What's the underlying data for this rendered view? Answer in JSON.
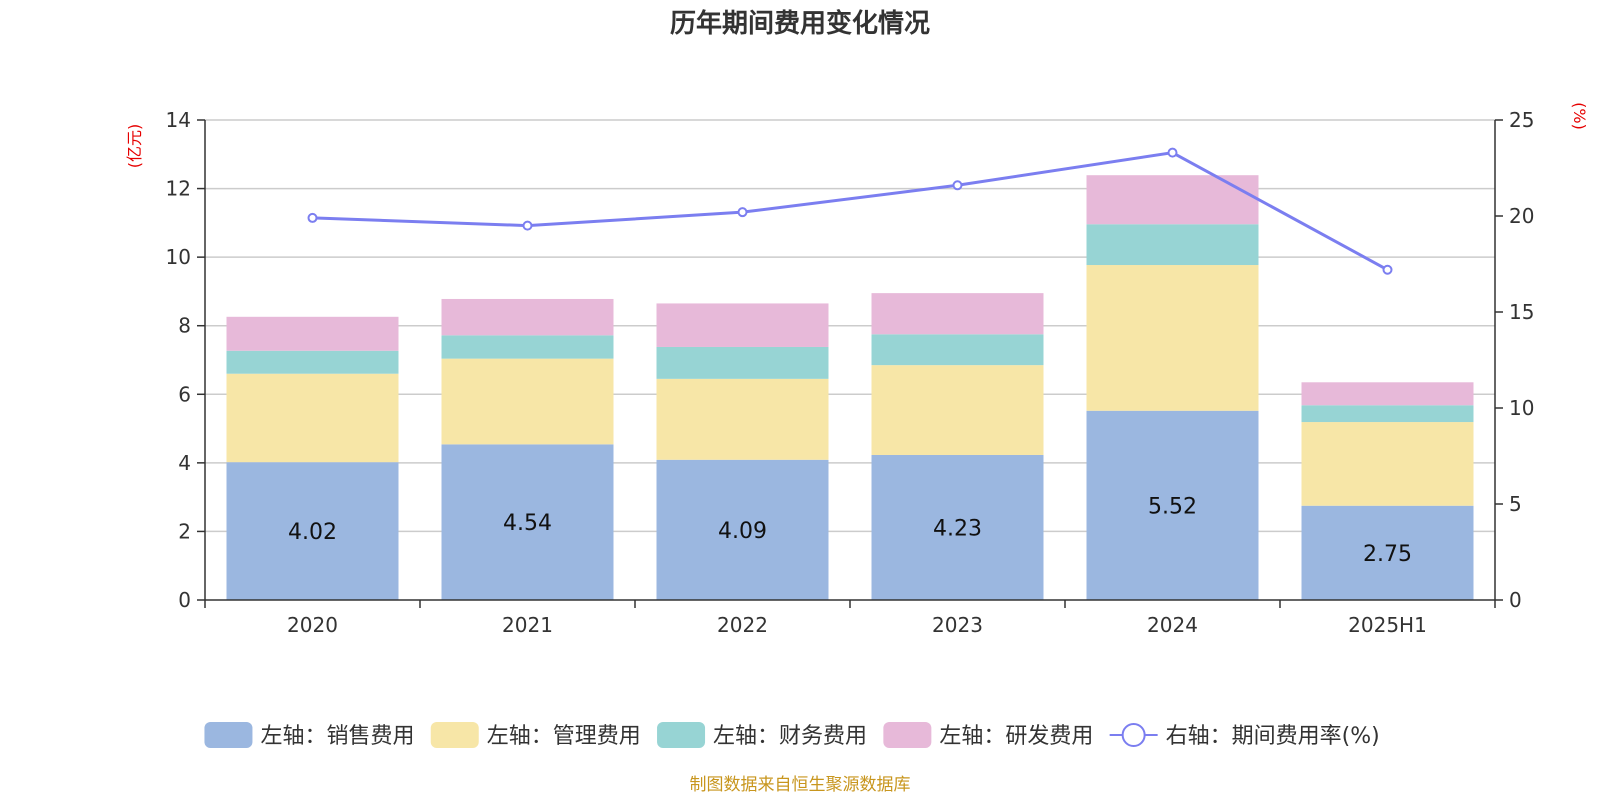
{
  "chart_data": {
    "type": "bar",
    "title": "历年期间费用变化情况",
    "categories": [
      "2020",
      "2021",
      "2022",
      "2023",
      "2024",
      "2025H1"
    ],
    "left_axis": {
      "unit_label": "(亿元)",
      "ylim": [
        0,
        14
      ],
      "ticks": [
        "0",
        "2",
        "4",
        "6",
        "8",
        "10",
        "12",
        "14"
      ]
    },
    "right_axis": {
      "unit_label": "(%)",
      "ylim": [
        0,
        25
      ],
      "ticks": [
        "0",
        "5",
        "10",
        "15",
        "20",
        "25"
      ]
    },
    "series": [
      {
        "name": "左轴：销售费用",
        "type": "bar",
        "stack": "left",
        "color": "#9bb7e0",
        "values": [
          4.02,
          4.54,
          4.09,
          4.23,
          5.52,
          2.75
        ],
        "labels": [
          "4.02",
          "4.54",
          "4.09",
          "4.23",
          "5.52",
          "2.75"
        ]
      },
      {
        "name": "左轴：管理费用",
        "type": "bar",
        "stack": "left",
        "color": "#f7e6a7",
        "values": [
          2.58,
          2.5,
          2.36,
          2.62,
          4.25,
          2.44
        ]
      },
      {
        "name": "左轴：财务费用",
        "type": "bar",
        "stack": "left",
        "color": "#97d4d4",
        "values": [
          0.67,
          0.68,
          0.93,
          0.9,
          1.19,
          0.49
        ]
      },
      {
        "name": "左轴：研发费用",
        "type": "bar",
        "stack": "left",
        "color": "#e7b9d9",
        "values": [
          0.99,
          1.06,
          1.27,
          1.2,
          1.43,
          0.67
        ]
      },
      {
        "name": "右轴：期间费用率(%)",
        "type": "line",
        "axis": "right",
        "color": "#7b7ef0",
        "values": [
          19.9,
          19.5,
          20.2,
          21.6,
          23.3,
          17.2
        ]
      }
    ],
    "grid": true,
    "legend_position": "bottom"
  },
  "source_note": "制图数据来自恒生聚源数据库"
}
